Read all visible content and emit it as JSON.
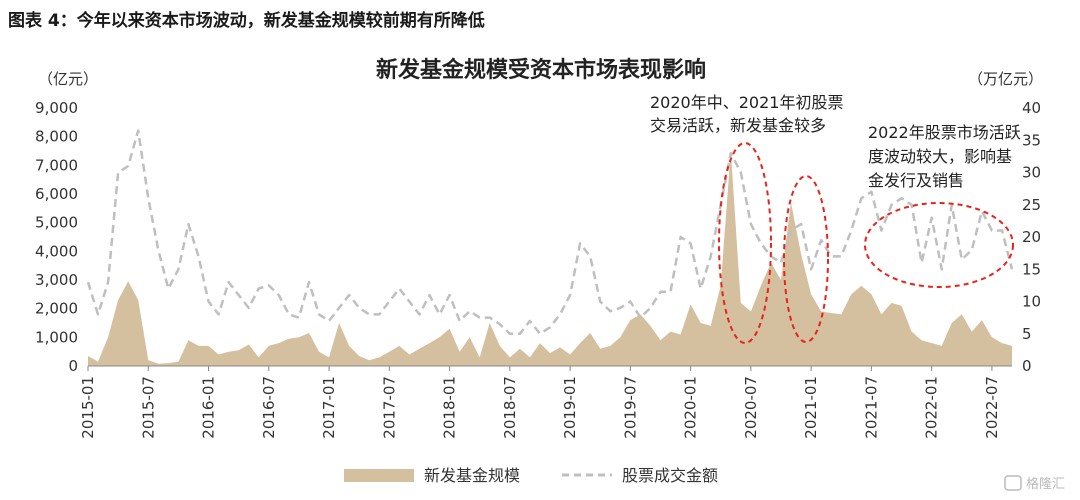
{
  "caption": "图表 4：今年以来资本市场波动，新发基金规模较前期有所降低",
  "watermark": "格隆汇",
  "chart_data": {
    "type": "area",
    "title": "新发基金规模受资本市场表现影响",
    "left_unit": "（亿元）",
    "right_unit": "（万亿元）",
    "left_ylim": [
      0,
      9000
    ],
    "left_ticks": [
      "0",
      "1,000",
      "2,000",
      "3,000",
      "4,000",
      "5,000",
      "6,000",
      "7,000",
      "8,000",
      "9,000"
    ],
    "right_ylim": [
      0,
      40
    ],
    "right_ticks": [
      "0",
      "5",
      "10",
      "15",
      "20",
      "25",
      "30",
      "35",
      "40"
    ],
    "x_tick_labels": [
      "2015-01",
      "2015-07",
      "2016-01",
      "2016-07",
      "2017-01",
      "2017-07",
      "2018-01",
      "2018-07",
      "2019-01",
      "2019-07",
      "2020-01",
      "2020-07",
      "2021-01",
      "2021-07",
      "2022-01",
      "2022-07"
    ],
    "start_month": "2015-01",
    "series": [
      {
        "name": "新发基金规模",
        "axis": "left",
        "style": "area",
        "color": "#d4bf9e",
        "values": [
          350,
          150,
          1000,
          2300,
          2950,
          2300,
          200,
          80,
          100,
          150,
          900,
          700,
          700,
          400,
          500,
          550,
          750,
          300,
          700,
          800,
          950,
          1000,
          1150,
          500,
          300,
          1500,
          700,
          350,
          200,
          300,
          500,
          700,
          400,
          600,
          800,
          1000,
          1300,
          500,
          1000,
          300,
          1500,
          700,
          300,
          600,
          300,
          800,
          450,
          650,
          400,
          800,
          1150,
          600,
          700,
          1000,
          1600,
          1800,
          1400,
          900,
          1200,
          1100,
          2150,
          1500,
          1400,
          2800,
          7500,
          2200,
          1900,
          2800,
          3600,
          3000,
          5700,
          3900,
          2500,
          1900,
          1850,
          1800,
          2500,
          2800,
          2500,
          1800,
          2200,
          2100,
          1200,
          900,
          800,
          700,
          1500,
          1800,
          1200,
          1600,
          1000,
          800,
          700
        ]
      },
      {
        "name": "股票成交金额",
        "axis": "right",
        "style": "dashed-line",
        "color": "#bfbfbf",
        "values": [
          13,
          8,
          13,
          30,
          31,
          36.5,
          26,
          18,
          12,
          15,
          22,
          17,
          10,
          8,
          13,
          11,
          9,
          12,
          12.5,
          11,
          8,
          7.5,
          13,
          8,
          7,
          9,
          11,
          9,
          8,
          8,
          10,
          12,
          10,
          8,
          11,
          8,
          11,
          7,
          8.5,
          7.5,
          7.5,
          6.5,
          5,
          5,
          7,
          5,
          6,
          8,
          11,
          19,
          17,
          10,
          8.5,
          9,
          10,
          7.5,
          9,
          11.5,
          11.5,
          20,
          19,
          12,
          17,
          25,
          33,
          30,
          22,
          19,
          17,
          16,
          21,
          22,
          15,
          19.5,
          17,
          17,
          21,
          26,
          27,
          21,
          25,
          26,
          25,
          16,
          23,
          15,
          25,
          16.5,
          18,
          24,
          21,
          21,
          15
        ]
      }
    ],
    "annotations": [
      {
        "lines": [
          "2020年中、2021年初股票",
          "交易活跃，新发基金较多"
        ]
      },
      {
        "lines": [
          "2022年股票市场活跃",
          "度波动较大，影响基",
          "金发行及销售"
        ]
      }
    ],
    "legend_position": "bottom-center",
    "grid": false
  }
}
